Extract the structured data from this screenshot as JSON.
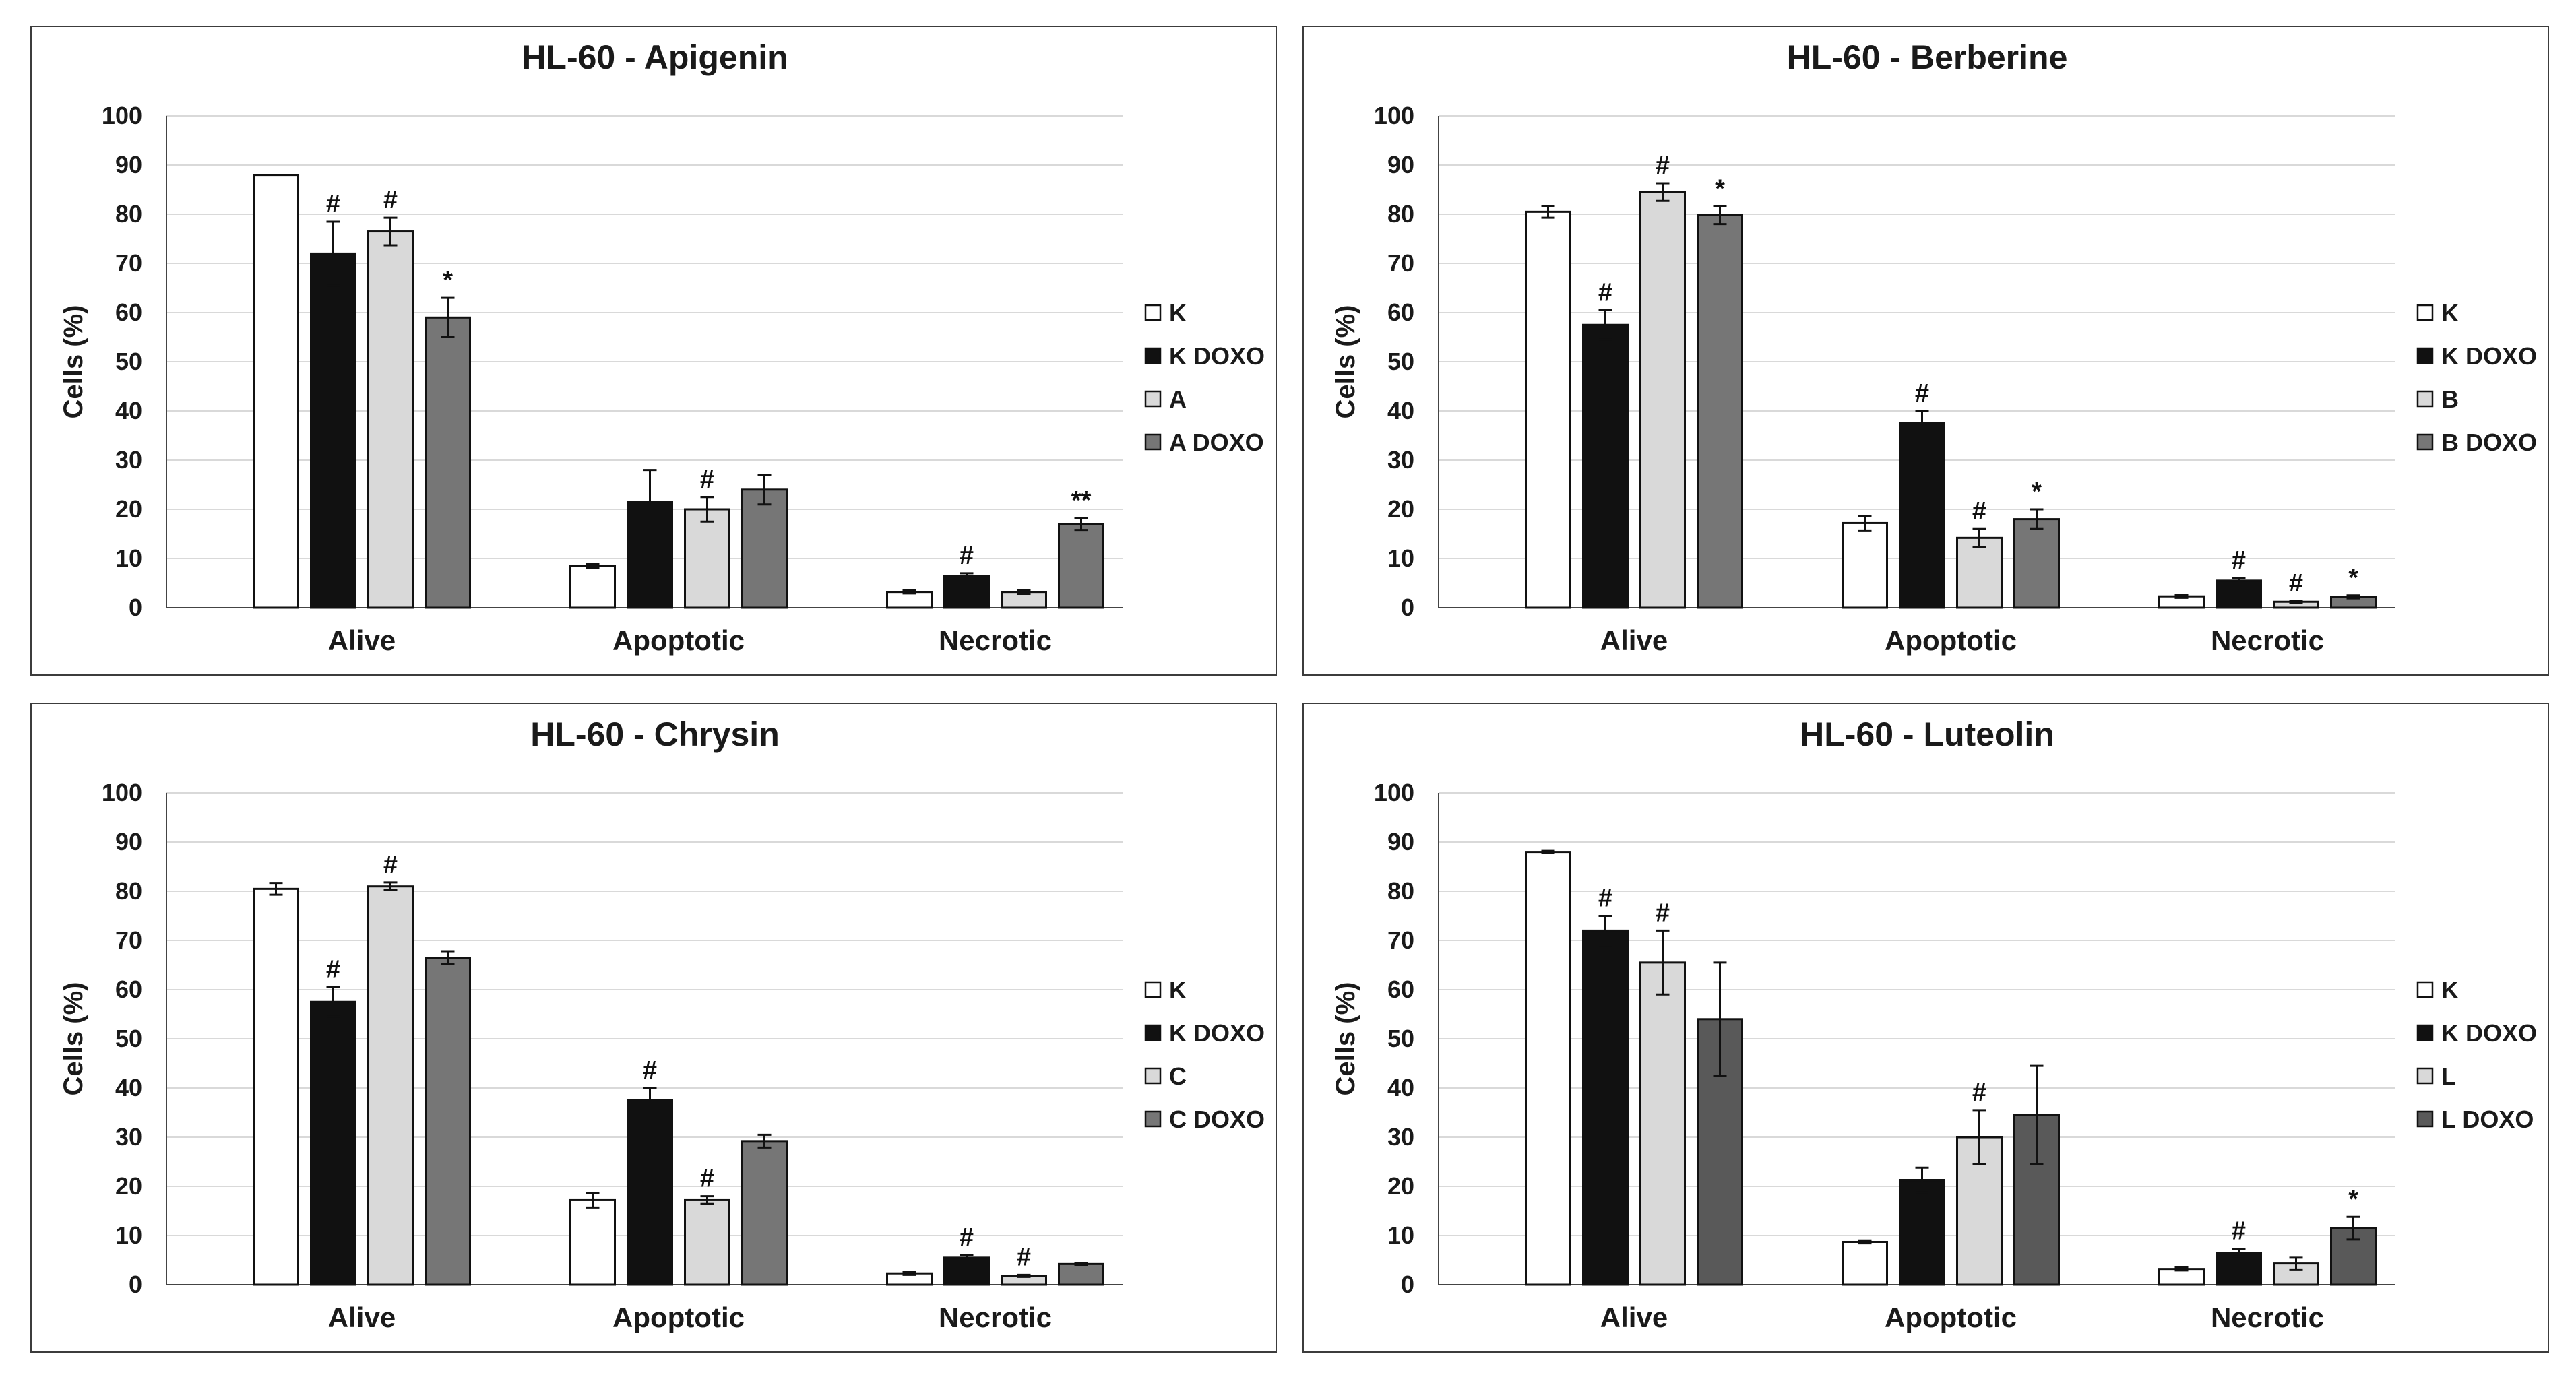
{
  "colors": {
    "K": "#ffffff",
    "KDOXO": "#111111",
    "treat": "#d9d9d9",
    "treatDOXO": "#767676",
    "treatDOXO_dark": "#595959",
    "grid": "#d9d9d9",
    "axis": "#444444"
  },
  "chart_data": [
    {
      "type": "bar",
      "title": "HL-60 - Apigenin",
      "ylabel": "Cells (%)",
      "xlabel": "",
      "ylim": [
        0,
        100
      ],
      "yticks": [
        "0",
        "10",
        "20",
        "30",
        "40",
        "50",
        "60",
        "70",
        "80",
        "90",
        "100"
      ],
      "categories": [
        "Alive",
        "Apoptotic",
        "Necrotic"
      ],
      "series": [
        {
          "name": "K",
          "values": [
            88,
            8.5,
            3.2
          ],
          "errors": [
            0,
            0.4,
            0.3
          ],
          "marks": [
            "",
            "",
            ""
          ]
        },
        {
          "name": "K DOXO",
          "values": [
            72,
            21.5,
            6.5
          ],
          "errors": [
            6.5,
            6.5,
            0.5
          ],
          "marks": [
            "#",
            "",
            "#"
          ]
        },
        {
          "name": "A",
          "values": [
            76.5,
            20,
            3.2
          ],
          "errors": [
            2.8,
            2.5,
            0.4
          ],
          "marks": [
            "#",
            "#",
            ""
          ]
        },
        {
          "name": "A DOXO",
          "values": [
            59,
            24,
            17
          ],
          "errors": [
            4,
            3,
            1.2
          ],
          "marks": [
            "*",
            "",
            "**"
          ]
        }
      ]
    },
    {
      "type": "bar",
      "title": "HL-60 - Berberine",
      "ylabel": "Cells (%)",
      "xlabel": "",
      "ylim": [
        0,
        100
      ],
      "yticks": [
        "0",
        "10",
        "20",
        "30",
        "40",
        "50",
        "60",
        "70",
        "80",
        "90",
        "100"
      ],
      "categories": [
        "Alive",
        "Apoptotic",
        "Necrotic"
      ],
      "series": [
        {
          "name": "K",
          "values": [
            80.5,
            17.2,
            2.3
          ],
          "errors": [
            1.2,
            1.5,
            0.3
          ],
          "marks": [
            "",
            "",
            ""
          ]
        },
        {
          "name": "K DOXO",
          "values": [
            57.5,
            37.5,
            5.5
          ],
          "errors": [
            3,
            2.5,
            0.5
          ],
          "marks": [
            "#",
            "#",
            "#"
          ]
        },
        {
          "name": "B",
          "values": [
            84.5,
            14.2,
            1.2
          ],
          "errors": [
            1.8,
            1.8,
            0.2
          ],
          "marks": [
            "#",
            "#",
            "#"
          ]
        },
        {
          "name": "B DOXO",
          "values": [
            79.8,
            18,
            2.2
          ],
          "errors": [
            1.8,
            2,
            0.3
          ],
          "marks": [
            "*",
            "*",
            "*"
          ]
        }
      ]
    },
    {
      "type": "bar",
      "title": "HL-60 - Chrysin",
      "ylabel": "Cells (%)",
      "xlabel": "",
      "ylim": [
        0,
        100
      ],
      "yticks": [
        "0",
        "10",
        "20",
        "30",
        "40",
        "50",
        "60",
        "70",
        "80",
        "90",
        "100"
      ],
      "categories": [
        "Alive",
        "Apoptotic",
        "Necrotic"
      ],
      "series": [
        {
          "name": "K",
          "values": [
            80.5,
            17.2,
            2.3
          ],
          "errors": [
            1.2,
            1.5,
            0.3
          ],
          "marks": [
            "",
            "",
            ""
          ]
        },
        {
          "name": "K DOXO",
          "values": [
            57.5,
            37.5,
            5.5
          ],
          "errors": [
            3,
            2.5,
            0.5
          ],
          "marks": [
            "#",
            "#",
            "#"
          ]
        },
        {
          "name": "C",
          "values": [
            81,
            17.2,
            1.8
          ],
          "errors": [
            0.8,
            0.8,
            0.2
          ],
          "marks": [
            "#",
            "#",
            "#"
          ]
        },
        {
          "name": "C DOXO",
          "values": [
            66.5,
            29.2,
            4.2
          ],
          "errors": [
            1.3,
            1.3,
            0.2
          ],
          "marks": [
            "",
            "",
            ""
          ]
        }
      ]
    },
    {
      "type": "bar",
      "title": "HL-60 - Luteolin",
      "ylabel": "Cells (%)",
      "xlabel": "",
      "ylim": [
        0,
        100
      ],
      "yticks": [
        "0",
        "10",
        "20",
        "30",
        "40",
        "50",
        "60",
        "70",
        "80",
        "90",
        "100"
      ],
      "categories": [
        "Alive",
        "Apoptotic",
        "Necrotic"
      ],
      "series": [
        {
          "name": "K",
          "values": [
            88,
            8.7,
            3.2
          ],
          "errors": [
            0.2,
            0.3,
            0.3
          ],
          "marks": [
            "",
            "",
            ""
          ]
        },
        {
          "name": "K DOXO",
          "values": [
            72,
            21.3,
            6.5
          ],
          "errors": [
            3,
            2.5,
            0.8
          ],
          "marks": [
            "#",
            "",
            "#"
          ]
        },
        {
          "name": "L",
          "values": [
            65.5,
            30,
            4.3
          ],
          "errors": [
            6.5,
            5.5,
            1.2
          ],
          "marks": [
            "#",
            "#",
            ""
          ]
        },
        {
          "name": "L DOXO",
          "values": [
            54,
            34.5,
            11.5
          ],
          "errors": [
            11.5,
            10,
            2.3
          ],
          "marks": [
            "",
            "",
            "*"
          ]
        }
      ]
    }
  ]
}
